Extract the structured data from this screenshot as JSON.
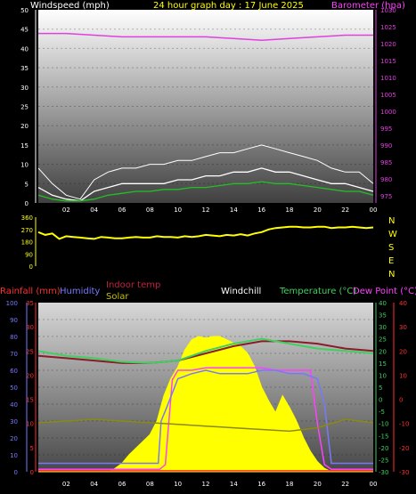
{
  "title": "24 hour graph day : 17 June 2025",
  "colors": {
    "wind": "#ffffff",
    "gust": "#ffffff",
    "wind_avg": "#22c022",
    "baro": "#e040e0",
    "direction": "#ffff00",
    "indoor": "#8b1a2a",
    "temp": "#40d060",
    "dew": "#ff40ff",
    "humidity": "#7878ff",
    "solar": "#ffff00",
    "solar_line": "#8a8a10",
    "rain": "#ff3030"
  },
  "chart_data": [
    {
      "type": "line",
      "id": "wind-baro",
      "left_label": "Windspeed (mph)",
      "right_label": "Barometer (hpa)",
      "x_ticks": [
        "02",
        "04",
        "06",
        "08",
        "10",
        "12",
        "14",
        "16",
        "18",
        "20",
        "22",
        "00"
      ],
      "left_ticks": [
        "0",
        "5",
        "10",
        "15",
        "20",
        "25",
        "30",
        "35",
        "40",
        "45",
        "50"
      ],
      "right_ticks": [
        "975",
        "980",
        "985",
        "990",
        "995",
        "1000",
        "1005",
        "1010",
        "1015",
        "1020",
        "1025",
        "1030"
      ],
      "left_range": [
        0,
        50
      ],
      "right_range": [
        975,
        1030
      ],
      "grid": true,
      "series": [
        {
          "key": "gust",
          "axis": "left",
          "x": [
            0,
            1,
            2,
            3,
            4,
            5,
            6,
            7,
            8,
            9,
            10,
            11,
            12,
            13,
            14,
            15,
            16,
            17,
            18,
            19,
            20,
            21,
            22,
            23,
            24
          ],
          "values": [
            9,
            5,
            2,
            1,
            6,
            8,
            9,
            9,
            10,
            10,
            11,
            11,
            12,
            13,
            13,
            14,
            15,
            14,
            13,
            12,
            11,
            9,
            8,
            8,
            5
          ]
        },
        {
          "key": "wind",
          "axis": "left",
          "x": [
            0,
            1,
            2,
            3,
            4,
            5,
            6,
            7,
            8,
            9,
            10,
            11,
            12,
            13,
            14,
            15,
            16,
            17,
            18,
            19,
            20,
            21,
            22,
            23,
            24
          ],
          "values": [
            4,
            2,
            1,
            0.5,
            3,
            4,
            5,
            5,
            5,
            5,
            6,
            6,
            7,
            7,
            8,
            8,
            9,
            8,
            8,
            7,
            6,
            5,
            5,
            4,
            3
          ]
        },
        {
          "key": "wind_avg",
          "axis": "left",
          "x": [
            0,
            1,
            2,
            3,
            4,
            5,
            6,
            7,
            8,
            9,
            10,
            11,
            12,
            13,
            14,
            15,
            16,
            17,
            18,
            19,
            20,
            21,
            22,
            23,
            24
          ],
          "values": [
            2,
            1,
            0.5,
            0.5,
            1,
            2,
            2.5,
            3,
            3,
            3.5,
            3.5,
            4,
            4,
            4.5,
            5,
            5,
            5.5,
            5,
            5,
            4.5,
            4,
            3.5,
            3,
            3,
            2
          ]
        },
        {
          "key": "baro",
          "axis": "right",
          "x": [
            0,
            2,
            4,
            6,
            8,
            10,
            12,
            14,
            16,
            18,
            20,
            22,
            24
          ],
          "values": [
            1023,
            1023,
            1022.5,
            1022,
            1022,
            1022,
            1022,
            1021.5,
            1021,
            1021.5,
            1022,
            1022.5,
            1022.5
          ]
        }
      ]
    },
    {
      "type": "line",
      "id": "direction",
      "left_ticks": [
        "0",
        "90",
        "180",
        "270",
        "360"
      ],
      "compass": [
        "N",
        "W",
        "S",
        "E",
        "N"
      ],
      "range": [
        0,
        360
      ],
      "series": [
        {
          "key": "direction",
          "x": [
            0,
            0.5,
            1,
            1.5,
            2,
            2.5,
            3,
            3.5,
            4,
            4.5,
            5,
            5.5,
            6,
            6.5,
            7,
            7.5,
            8,
            8.5,
            9,
            9.5,
            10,
            10.5,
            11,
            11.5,
            12,
            12.5,
            13,
            13.5,
            14,
            14.5,
            15,
            15.5,
            16,
            16.5,
            17,
            17.5,
            18,
            18.5,
            19,
            19.5,
            20,
            20.5,
            21,
            21.5,
            22,
            22.5,
            23,
            23.5,
            24
          ],
          "values": [
            250,
            230,
            240,
            200,
            220,
            215,
            210,
            205,
            200,
            215,
            210,
            205,
            205,
            210,
            215,
            210,
            210,
            220,
            215,
            215,
            210,
            220,
            215,
            220,
            230,
            225,
            220,
            230,
            225,
            235,
            225,
            240,
            250,
            270,
            280,
            285,
            290,
            290,
            285,
            285,
            290,
            290,
            280,
            285,
            285,
            290,
            285,
            280,
            285
          ]
        }
      ]
    },
    {
      "type": "line",
      "id": "temp-solar",
      "legend": [
        "Rainfall (mm)",
        "Humidity",
        "Indoor temp",
        "Solar",
        "Windchill",
        "Temperature (°C)",
        "Dew Point (°C)"
      ],
      "x_ticks": [
        "02",
        "04",
        "06",
        "08",
        "10",
        "12",
        "14",
        "16",
        "18",
        "20",
        "22",
        "00"
      ],
      "humidity_ticks": [
        "0",
        "10",
        "20",
        "30",
        "40",
        "50",
        "60",
        "70",
        "80",
        "90",
        "100"
      ],
      "rain_ticks": [
        "0",
        "5",
        "10",
        "15",
        "20",
        "25",
        "30",
        "35"
      ],
      "temp_ticks": [
        "-30",
        "-25",
        "-20",
        "-15",
        "-10",
        "-5",
        "0",
        "5",
        "10",
        "15",
        "20",
        "25",
        "30",
        "35",
        "40"
      ],
      "dew_ticks": [
        "-30",
        "-20",
        "-10",
        "0",
        "10",
        "20",
        "30",
        "40"
      ],
      "temp_range": [
        -30,
        40
      ],
      "solar_range": [
        0,
        1
      ],
      "series": [
        {
          "key": "solar",
          "axis": "solar",
          "x": [
            0,
            4,
            5,
            5.5,
            6,
            6.5,
            7,
            7.5,
            8,
            8.5,
            9,
            9.5,
            10,
            10.5,
            11,
            11.5,
            12,
            12.5,
            13,
            13.5,
            14,
            14.5,
            15,
            15.5,
            16,
            16.5,
            17,
            17.5,
            18,
            18.5,
            19,
            19.5,
            20,
            20.5,
            21,
            24
          ],
          "values": [
            0,
            0,
            0,
            0.02,
            0.05,
            0.1,
            0.14,
            0.18,
            0.22,
            0.3,
            0.45,
            0.55,
            0.62,
            0.72,
            0.78,
            0.8,
            0.79,
            0.8,
            0.8,
            0.78,
            0.76,
            0.74,
            0.7,
            0.62,
            0.5,
            0.42,
            0.35,
            0.45,
            0.38,
            0.3,
            0.2,
            0.12,
            0.06,
            0.02,
            0,
            0
          ]
        },
        {
          "key": "indoor",
          "axis": "temp",
          "x": [
            0,
            2,
            4,
            6,
            8,
            10,
            12,
            14,
            16,
            18,
            20,
            22,
            24
          ],
          "values": [
            18,
            17,
            16,
            15,
            15,
            16,
            19,
            22,
            24,
            24,
            23,
            21,
            20
          ]
        },
        {
          "key": "temp",
          "axis": "temp",
          "x": [
            0,
            2,
            4,
            6,
            8,
            10,
            12,
            14,
            16,
            18,
            20,
            22,
            24
          ],
          "values": [
            20,
            18,
            17,
            15.5,
            15,
            16,
            20,
            23,
            25,
            23,
            21,
            20,
            19
          ]
        },
        {
          "key": "dew",
          "axis": "temp",
          "x": [
            0,
            2,
            4,
            6,
            8,
            8.7,
            9.1,
            9.6,
            10,
            11,
            12,
            13,
            14,
            15,
            16,
            17,
            18,
            19,
            19.5,
            20,
            20.5,
            21,
            22,
            24
          ],
          "values": [
            -29,
            -29,
            -29,
            -29,
            -29,
            -29,
            -27,
            8,
            12,
            12,
            13,
            13,
            13,
            13,
            13,
            12,
            12,
            12,
            12,
            -10,
            -27,
            -29,
            -29,
            -29
          ]
        },
        {
          "key": "humidity",
          "axis": "humidity",
          "x": [
            0,
            8.6,
            8.8,
            9.2,
            10,
            11,
            12,
            13,
            14,
            15,
            16,
            17,
            18,
            19,
            20,
            20.5,
            21,
            24
          ],
          "values": [
            5,
            5,
            30,
            38,
            55,
            58,
            60,
            58,
            58,
            58,
            60,
            60,
            58,
            58,
            55,
            40,
            5,
            5
          ]
        },
        {
          "key": "solar_line",
          "axis": "humidity",
          "x": [
            0,
            2,
            4,
            6,
            8,
            10,
            12,
            14,
            16,
            18,
            20,
            22,
            24
          ],
          "values": [
            29,
            30,
            31,
            30,
            29,
            28,
            27,
            26,
            25,
            24,
            26,
            31,
            29
          ]
        },
        {
          "key": "rain",
          "axis": "rain",
          "x": [
            0,
            24
          ],
          "values": [
            0.2,
            0.2
          ]
        }
      ]
    }
  ]
}
